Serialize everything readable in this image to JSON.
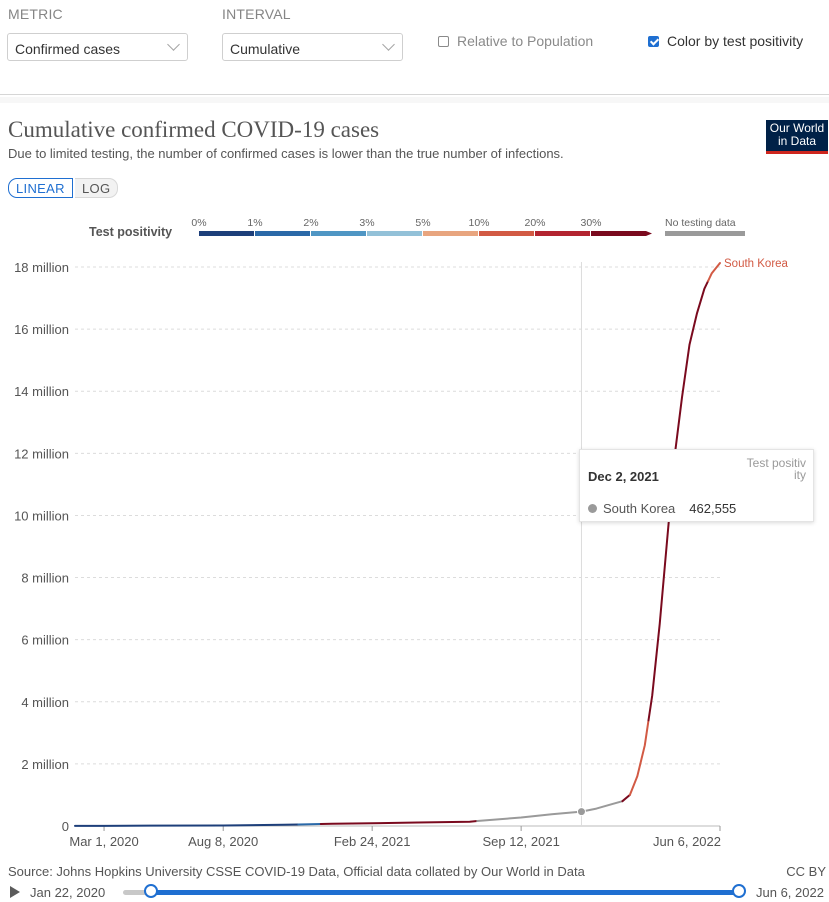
{
  "controls": {
    "metric_label": "METRIC",
    "metric_value": "Confirmed cases",
    "interval_label": "INTERVAL",
    "interval_value": "Cumulative",
    "relative_label": "Relative to Population",
    "relative_checked": false,
    "color_label": "Color by test positivity",
    "color_checked": true
  },
  "header": {
    "title": "Cumulative confirmed COVID-19 cases",
    "subtitle": "Due to limited testing, the number of confirmed cases is lower than the true number of infections.",
    "logo": "Our World in Data"
  },
  "scale_toggle": {
    "linear": "LINEAR",
    "log": "LOG",
    "active": "LINEAR"
  },
  "legend": {
    "title": "Test positivity",
    "bins": [
      {
        "label": "0%",
        "color": "#1d3f7a"
      },
      {
        "label": "1%",
        "color": "#2b69a8"
      },
      {
        "label": "2%",
        "color": "#4f96c4"
      },
      {
        "label": "3%",
        "color": "#93c1d8"
      },
      {
        "label": "5%",
        "color": "#e8a57f"
      },
      {
        "label": "10%",
        "color": "#d25a44"
      },
      {
        "label": "20%",
        "color": "#b32430"
      },
      {
        "label": "30%",
        "color": "#7a0a1e"
      }
    ],
    "no_data_label": "No testing data",
    "no_data_color": "#9a9a9a"
  },
  "chart_data": {
    "type": "line",
    "title": "Cumulative confirmed COVID-19 cases",
    "x_unit": "date",
    "x_range": [
      "2020-01-22",
      "2022-06-06"
    ],
    "x_ticks": [
      "Mar 1, 2020",
      "Aug 8, 2020",
      "Feb 24, 2021",
      "Sep 12, 2021",
      "Jun 6, 2022"
    ],
    "x_tick_days": [
      39,
      199,
      399,
      599,
      866
    ],
    "y_ticks": [
      "0",
      "2 million",
      "4 million",
      "6 million",
      "8 million",
      "10 million",
      "12 million",
      "14 million",
      "16 million",
      "18 million"
    ],
    "ylim": [
      0,
      18000000
    ],
    "series": [
      {
        "name": "South Korea",
        "label_color": "#d25a44",
        "points_day_value": [
          [
            39,
            4000
          ],
          [
            100,
            13000
          ],
          [
            199,
            14500
          ],
          [
            280,
            40000
          ],
          [
            345,
            70000
          ],
          [
            399,
            88000
          ],
          [
            460,
            112000
          ],
          [
            530,
            140000
          ],
          [
            599,
            275000
          ],
          [
            640,
            380000
          ],
          [
            680,
            462555
          ],
          [
            700,
            560000
          ],
          [
            720,
            700000
          ],
          [
            735,
            800000
          ],
          [
            745,
            1000000
          ],
          [
            755,
            1600000
          ],
          [
            765,
            2600000
          ],
          [
            775,
            4200000
          ],
          [
            785,
            6500000
          ],
          [
            795,
            9200000
          ],
          [
            805,
            11900000
          ],
          [
            815,
            13800000
          ],
          [
            825,
            15500000
          ],
          [
            835,
            16500000
          ],
          [
            845,
            17300000
          ],
          [
            855,
            17800000
          ],
          [
            866,
            18130000
          ]
        ],
        "color_segments": [
          {
            "from_day": 0,
            "to_day": 300,
            "color": "#1d3f7a"
          },
          {
            "from_day": 300,
            "to_day": 330,
            "color": "#2b69a8"
          },
          {
            "from_day": 330,
            "to_day": 540,
            "color": "#7a0a1e"
          },
          {
            "from_day": 540,
            "to_day": 735,
            "color": "#9a9a9a"
          },
          {
            "from_day": 735,
            "to_day": 745,
            "color": "#7a0a1e"
          },
          {
            "from_day": 745,
            "to_day": 770,
            "color": "#d25a44"
          },
          {
            "from_day": 770,
            "to_day": 850,
            "color": "#7a0a1e"
          },
          {
            "from_day": 850,
            "to_day": 866,
            "color": "#d25a44"
          }
        ]
      }
    ],
    "hover": {
      "day": 680,
      "date": "Dec 2, 2021",
      "value": 462555
    }
  },
  "tooltip": {
    "date": "Dec 2, 2021",
    "column": "Test positivity",
    "entity": "South Korea",
    "value": "462,555"
  },
  "footer": {
    "source": "Source: Johns Hopkins University CSSE COVID-19 Data, Official data collated by Our World in Data",
    "license": "CC BY"
  },
  "timeline": {
    "start": "Jan 22, 2020",
    "end": "Jun 6, 2022"
  }
}
